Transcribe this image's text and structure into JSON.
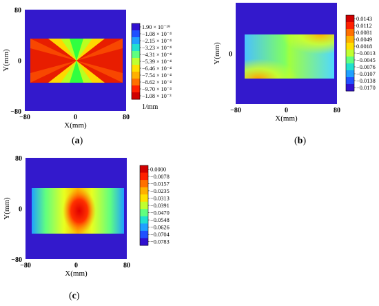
{
  "panels": [
    {
      "id": "a",
      "label_open": "(",
      "label_letter": "a",
      "label_close": ")",
      "chart_data": {
        "type": "heatmap",
        "xlabel": "X(mm)",
        "ylabel": "Y(mm)",
        "xlim": [
          -80,
          80
        ],
        "ylim": [
          -80,
          80
        ],
        "x_ticks": [
          "-80",
          "0",
          "80"
        ],
        "y_ticks": [
          "80",
          "0",
          "-80"
        ],
        "data_region": {
          "x": [
            -72,
            72
          ],
          "y": [
            -36,
            36
          ]
        },
        "colorbar_values": [
          "1.90 × 10⁻¹⁹",
          "−1.08 × 10⁻⁴",
          "−2.15 × 10⁻⁴",
          "−3.23 × 10⁻⁴",
          "−4.31 × 10⁻⁴",
          "−5.39 × 10⁻⁴",
          "−6.46 × 10⁻⁴",
          "−7.54 × 10⁻⁴",
          "−8.62 × 10⁻⁴",
          "−9.70 × 10⁻⁴",
          "−1.08 × 10⁻³"
        ],
        "colorbar_unit": "1/mm",
        "colorbar_order": "descending"
      }
    },
    {
      "id": "b",
      "label_open": "(",
      "label_letter": "b",
      "label_close": ")",
      "chart_data": {
        "type": "heatmap",
        "xlabel": "X(mm)",
        "ylabel": "Y(mm)",
        "xlim": [
          -80,
          80
        ],
        "ylim": [
          -80,
          80
        ],
        "x_ticks": [
          "-80",
          "0",
          "80"
        ],
        "y_ticks": [
          "0"
        ],
        "data_region": {
          "x": [
            -72,
            72
          ],
          "y": [
            -36,
            36
          ]
        },
        "colorbar_values": [
          "0.0143",
          "0.0112",
          "0.0081",
          "0.0049",
          "0.0018",
          "−0.0013",
          "−0.0045",
          "−0.0076",
          "−0.0107",
          "−0.0138",
          "−0.0170"
        ],
        "colorbar_unit": "",
        "colorbar_order": "ascending"
      }
    },
    {
      "id": "c",
      "label_open": "(",
      "label_letter": "c",
      "label_close": ")",
      "chart_data": {
        "type": "heatmap",
        "xlabel": "X(mm)",
        "ylabel": "Y(mm)",
        "xlim": [
          -80,
          80
        ],
        "ylim": [
          -80,
          80
        ],
        "x_ticks": [
          "-80",
          "0",
          "80"
        ],
        "y_ticks": [
          "80",
          "0",
          "-80"
        ],
        "data_region": {
          "x": [
            -72,
            72
          ],
          "y": [
            -36,
            36
          ]
        },
        "colorbar_values": [
          "0.0000",
          "−0.0078",
          "−0.0157",
          "−0.0235",
          "−0.0313",
          "−0.0391",
          "−0.0470",
          "−0.0548",
          "−0.0626",
          "−0.0704",
          "−0.0783"
        ],
        "colorbar_unit": "",
        "colorbar_order": "ascending"
      }
    }
  ]
}
